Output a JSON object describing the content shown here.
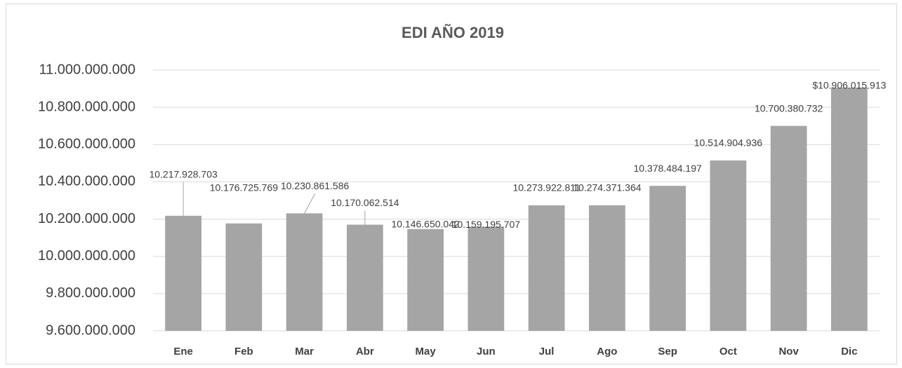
{
  "chart_data": {
    "type": "bar",
    "title": "EDI  AÑO 2019",
    "categories": [
      "Ene",
      "Feb",
      "Mar",
      "Abr",
      "May",
      "Jun",
      "Jul",
      "Ago",
      "Sep",
      "Oct",
      "Nov",
      "Dic"
    ],
    "values": [
      10217928703,
      10176725769,
      10230861586,
      10170062514,
      10146650042,
      10159195707,
      10273922811,
      10274371364,
      10378484197,
      10514904936,
      10700380732,
      10906015913
    ],
    "value_labels": [
      "10.217.928.703",
      "10.176.725.769",
      "10.230.861.586",
      "10.170.062.514",
      "10.146.650.042",
      "10.159.195.707",
      "10.273.922.811",
      "10.274.371.364",
      "10.378.484.197",
      "10.514.904.936",
      "10.700.380.732",
      "$10.906.015.913"
    ],
    "color": "#a5a5a5",
    "ylim": [
      9600000000,
      11000000000
    ],
    "yticks": [
      {
        "value": 9600000000,
        "label": "9.600.000.000"
      },
      {
        "value": 9800000000,
        "label": "9.800.000.000"
      },
      {
        "value": 10000000000,
        "label": "10.000.000.000"
      },
      {
        "value": 10200000000,
        "label": "10.200.000.000"
      },
      {
        "value": 10400000000,
        "label": "10.400.000.000"
      },
      {
        "value": 10600000000,
        "label": "10.600.000.000"
      },
      {
        "value": 10800000000,
        "label": "10.800.000.000"
      },
      {
        "value": 11000000000,
        "label": "11.000.000.000"
      }
    ],
    "grid": true
  }
}
